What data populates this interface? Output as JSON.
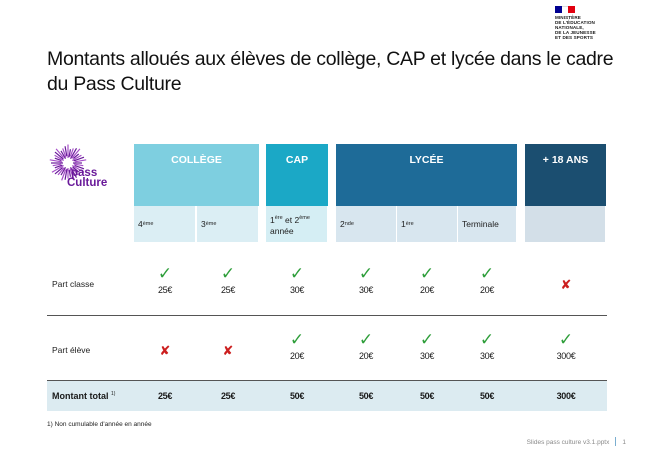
{
  "ministry": {
    "lines": "MINISTÈRE\nDE L'ÉDUCATION\nNATIONALE,\nDE LA JEUNESSE\nET DES SPORTS",
    "flag_colors": [
      "#000091",
      "#ffffff",
      "#e1000f"
    ]
  },
  "title": "Montants alloués aux élèves de collège, CAP et lycée dans le cadre du Pass Culture",
  "logo": {
    "line1": "pass",
    "line2": "Culture",
    "color": "#6a1a9a"
  },
  "columns": {
    "college": {
      "label": "COLLÈGE",
      "color": "#7ecfe0"
    },
    "cap": {
      "label": "CAP",
      "color": "#1ba8c6"
    },
    "lycee": {
      "label": "LYCÉE",
      "color": "#1e6b98"
    },
    "plus18": {
      "label": "+ 18 ANS",
      "color": "#1b4e70"
    }
  },
  "levels": {
    "c4": {
      "base": "4",
      "sup": "ème"
    },
    "c3": {
      "base": "3",
      "sup": "ème"
    },
    "cap": {
      "b1": "1",
      "s1": "ère",
      "mid": " et 2",
      "s2": "ème",
      "tail": "année"
    },
    "l2": {
      "base": "2",
      "sup": "nde"
    },
    "l1": {
      "base": "1",
      "sup": "ère"
    },
    "lt": {
      "base": "Terminale"
    }
  },
  "rows": {
    "classe": {
      "label": "Part classe",
      "cells": [
        {
          "status": "check",
          "amount": "25€"
        },
        {
          "status": "check",
          "amount": "25€"
        },
        {
          "status": "check",
          "amount": "30€"
        },
        {
          "status": "check",
          "amount": "30€"
        },
        {
          "status": "check",
          "amount": "20€"
        },
        {
          "status": "check",
          "amount": "20€"
        },
        {
          "status": "cross",
          "amount": ""
        }
      ]
    },
    "eleve": {
      "label": "Part élève",
      "cells": [
        {
          "status": "cross",
          "amount": ""
        },
        {
          "status": "cross",
          "amount": ""
        },
        {
          "status": "check",
          "amount": "20€"
        },
        {
          "status": "check",
          "amount": "20€"
        },
        {
          "status": "check",
          "amount": "30€"
        },
        {
          "status": "check",
          "amount": "30€"
        },
        {
          "status": "check",
          "amount": "300€"
        }
      ]
    }
  },
  "total": {
    "label": "Montant total",
    "sup": "1)",
    "values": [
      "25€",
      "25€",
      "50€",
      "50€",
      "50€",
      "50€",
      "300€"
    ]
  },
  "footnote": "1) Non cumulable d'année en année",
  "footer": {
    "file": "Slides pass culture v3.1.pptx",
    "page": "1"
  },
  "glyphs": {
    "check": "✓",
    "cross": "✘"
  }
}
